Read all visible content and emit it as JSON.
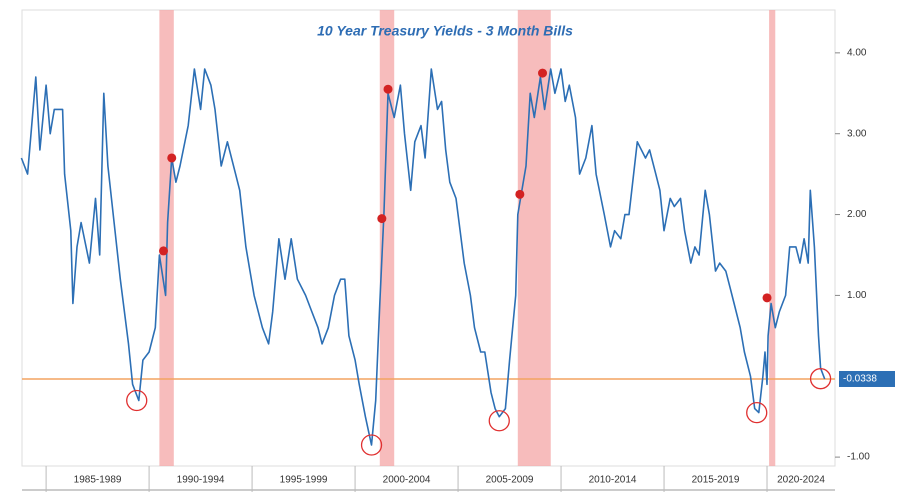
{
  "chart_data": {
    "type": "line",
    "title": "10 Year Treasury Yields - 3 Month Bills",
    "color": "#2c6fb5",
    "x": [
      1983.8,
      1984.1,
      1984.5,
      1984.7,
      1985.0,
      1985.2,
      1985.4,
      1985.8,
      1985.9,
      1986.2,
      1986.3,
      1986.5,
      1986.7,
      1987.1,
      1987.4,
      1987.6,
      1987.8,
      1988.0,
      1988.3,
      1988.6,
      1989.0,
      1989.2,
      1989.5,
      1989.7,
      1990.0,
      1990.3,
      1990.5,
      1990.8,
      1990.9,
      1991.1,
      1991.3,
      1991.5,
      1991.9,
      1992.2,
      1992.5,
      1992.7,
      1993.0,
      1993.2,
      1993.5,
      1993.8,
      1994.2,
      1994.4,
      1994.7,
      1994.9,
      1995.1,
      1995.5,
      1995.8,
      1996.0,
      1996.3,
      1996.6,
      1996.9,
      1997.2,
      1997.6,
      1997.9,
      1998.2,
      1998.4,
      1998.7,
      1999.0,
      1999.3,
      1999.5,
      1999.7,
      2000.0,
      2000.2,
      2000.5,
      2000.8,
      2001.0,
      2001.2,
      2001.4,
      2001.6,
      2001.9,
      2002.2,
      2002.4,
      2002.7,
      2002.9,
      2003.2,
      2003.4,
      2003.7,
      2004.0,
      2004.2,
      2004.4,
      2004.6,
      2004.9,
      2005.1,
      2005.3,
      2005.6,
      2005.8,
      2006.1,
      2006.3,
      2006.6,
      2006.8,
      2007.0,
      2007.3,
      2007.5,
      2007.8,
      2007.9,
      2008.1,
      2008.3,
      2008.5,
      2008.7,
      2009.0,
      2009.2,
      2009.5,
      2009.7,
      2010.0,
      2010.2,
      2010.4,
      2010.7,
      2010.9,
      2011.2,
      2011.5,
      2011.7,
      2012.1,
      2012.4,
      2012.6,
      2012.9,
      2013.1,
      2013.3,
      2013.7,
      2014.1,
      2014.3,
      2014.6,
      2014.8,
      2015.0,
      2015.3,
      2015.5,
      2015.8,
      2016.0,
      2016.3,
      2016.5,
      2016.7,
      2017.0,
      2017.2,
      2017.5,
      2017.7,
      2018.0,
      2018.2,
      2018.4,
      2018.7,
      2018.9,
      2019.2,
      2019.4,
      2019.6,
      2019.8,
      2019.9,
      2020.0,
      2020.05,
      2020.2,
      2020.4,
      2020.6,
      2020.9,
      2021.1,
      2021.4,
      2021.6,
      2021.8,
      2022.0,
      2022.1,
      2022.3,
      2022.5,
      2022.6,
      2022.8
    ],
    "values": [
      2.7,
      2.5,
      3.7,
      2.8,
      3.6,
      3.0,
      3.3,
      3.3,
      2.5,
      1.8,
      0.9,
      1.6,
      1.9,
      1.4,
      2.2,
      1.5,
      3.5,
      2.6,
      1.9,
      1.2,
      0.4,
      -0.1,
      -0.3,
      0.2,
      0.3,
      0.6,
      1.5,
      1.0,
      1.9,
      2.7,
      2.4,
      2.6,
      3.1,
      3.8,
      3.3,
      3.8,
      3.6,
      3.3,
      2.6,
      2.9,
      2.5,
      2.3,
      1.6,
      1.3,
      1.0,
      0.6,
      0.4,
      0.8,
      1.7,
      1.2,
      1.7,
      1.2,
      1.0,
      0.8,
      0.6,
      0.4,
      0.6,
      1.0,
      1.2,
      1.2,
      0.5,
      0.2,
      -0.1,
      -0.5,
      -0.85,
      -0.3,
      0.9,
      2.0,
      3.5,
      3.2,
      3.6,
      3.0,
      2.3,
      2.9,
      3.1,
      2.7,
      3.8,
      3.3,
      3.4,
      2.8,
      2.4,
      2.2,
      1.8,
      1.4,
      1.0,
      0.6,
      0.3,
      0.3,
      -0.2,
      -0.4,
      -0.5,
      -0.4,
      0.2,
      1.0,
      2.0,
      2.3,
      2.6,
      3.5,
      3.2,
      3.7,
      3.3,
      3.8,
      3.5,
      3.8,
      3.4,
      3.6,
      3.2,
      2.5,
      2.7,
      3.1,
      2.5,
      2.0,
      1.6,
      1.8,
      1.7,
      2.0,
      2.0,
      2.9,
      2.7,
      2.8,
      2.5,
      2.3,
      1.8,
      2.2,
      2.1,
      2.2,
      1.8,
      1.4,
      1.6,
      1.5,
      2.3,
      2.0,
      1.3,
      1.4,
      1.3,
      1.1,
      0.9,
      0.6,
      0.3,
      0.0,
      -0.4,
      -0.45,
      0.0,
      0.3,
      -0.1,
      0.5,
      0.9,
      0.6,
      0.8,
      1.0,
      1.6,
      1.6,
      1.4,
      1.7,
      1.4,
      2.3,
      1.6,
      0.5,
      0.1,
      -0.0338
    ],
    "last_value": -0.0338,
    "last_value_color": "#f4a460",
    "xlim": [
      1983.83,
      2023.3
    ],
    "ylim": [
      -1.11,
      4.53
    ],
    "yticks": [
      {
        "value": 4,
        "label": "4.00"
      },
      {
        "value": 3,
        "label": "3.00"
      },
      {
        "value": 2,
        "label": "2.00"
      },
      {
        "value": 1,
        "label": "1.00"
      },
      {
        "value": -1,
        "label": "-1.00"
      }
    ],
    "period_bounds": [
      1985,
      1990,
      1995,
      2000,
      2005,
      2010,
      2015,
      2020,
      2025
    ],
    "period_labels": [
      "1985-1989",
      "1990-1994",
      "1995-1999",
      "2000-2004",
      "2005-2009",
      "2010-2014",
      "2015-2019",
      "2020-2024"
    ],
    "recessions": [
      [
        1990.5,
        1991.2
      ],
      [
        2001.2,
        2001.9
      ],
      [
        2007.9,
        2009.5
      ],
      [
        2020.1,
        2020.4
      ]
    ],
    "recession_color": "#f4a6a6",
    "markers": {
      "x": [
        1990.7,
        1991.1,
        2001.3,
        2001.6,
        2008.0,
        2009.1,
        2020.0
      ],
      "y": [
        1.55,
        2.7,
        1.95,
        3.55,
        2.25,
        3.75,
        0.97
      ],
      "color": "#d32222"
    },
    "troughs": {
      "x": [
        1989.4,
        2000.8,
        2007.0,
        2019.5,
        2022.6
      ],
      "y": [
        -0.3,
        -0.85,
        -0.55,
        -0.45,
        -0.03
      ],
      "color": "#e03030"
    }
  }
}
